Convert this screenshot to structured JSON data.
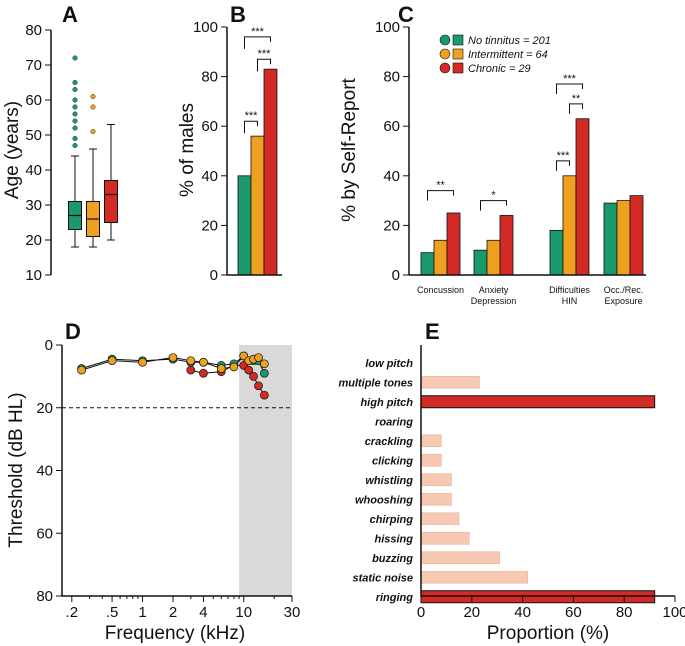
{
  "colors": {
    "no_tinnitus": "#1a9a6c",
    "intermittent": "#f0a020",
    "chronic": "#d42a25",
    "shade": "#d9d9d9",
    "light_bar": "#f7c8b2"
  },
  "chart_data": [
    {
      "panel": "A",
      "type": "box",
      "ylabel": "Age (years)",
      "ylim": [
        10,
        80
      ],
      "yticks": [
        10,
        20,
        30,
        40,
        50,
        60,
        70,
        80
      ],
      "series": [
        {
          "name": "No tinnitus",
          "whisker_low": 18,
          "q1": 23,
          "median": 27,
          "q3": 31,
          "whisker_high": 44,
          "outliers": [
            47,
            49,
            52,
            54,
            56,
            58,
            60,
            63,
            65,
            72
          ]
        },
        {
          "name": "Intermittent",
          "whisker_low": 18,
          "q1": 21,
          "median": 26,
          "q3": 31,
          "whisker_high": 46,
          "outliers": [
            51,
            58,
            61
          ]
        },
        {
          "name": "Chronic",
          "whisker_low": 20,
          "q1": 25,
          "median": 33,
          "q3": 37,
          "whisker_high": 53,
          "outliers": []
        }
      ]
    },
    {
      "panel": "B",
      "type": "bar",
      "ylabel": "% of males",
      "ylim": [
        0,
        100
      ],
      "yticks": [
        0,
        20,
        40,
        60,
        80,
        100
      ],
      "series": [
        {
          "name": "No tinnitus",
          "value": 40
        },
        {
          "name": "Intermittent",
          "value": 56
        },
        {
          "name": "Chronic",
          "value": 83
        }
      ],
      "significance": [
        {
          "from": 0,
          "to": 2,
          "label": "***"
        },
        {
          "from": 1,
          "to": 2,
          "label": "***"
        },
        {
          "from": 0,
          "to": 1,
          "label": "***"
        }
      ]
    },
    {
      "panel": "C",
      "type": "bar",
      "ylabel": "% by Self-Report",
      "ylim": [
        0,
        100
      ],
      "yticks": [
        0,
        20,
        40,
        60,
        80,
        100
      ],
      "categories": [
        [
          "Concussion"
        ],
        [
          "Anxiety",
          "Depression"
        ],
        [
          "Difficulties",
          "HIN"
        ],
        [
          "Occ./Rec.",
          "Exposure"
        ]
      ],
      "series": [
        {
          "name": "No tinnitus = 201",
          "values": [
            9,
            10,
            18,
            29
          ]
        },
        {
          "name": "Intermittent = 64",
          "values": [
            14,
            14,
            40,
            30
          ]
        },
        {
          "name": "Chronic = 29",
          "values": [
            25,
            24,
            63,
            32
          ]
        }
      ],
      "significance": [
        {
          "category": 0,
          "from": 0,
          "to": 2,
          "label": "**"
        },
        {
          "category": 1,
          "from": 0,
          "to": 2,
          "label": "*"
        },
        {
          "category": 2,
          "from": 0,
          "to": 2,
          "label": "***"
        },
        {
          "category": 2,
          "from": 1,
          "to": 2,
          "label": "**"
        },
        {
          "category": 2,
          "from": 0,
          "to": 1,
          "label": "***"
        }
      ]
    },
    {
      "panel": "D",
      "type": "line",
      "xlabel": "Frequency (kHz)",
      "ylabel": "Threshold (dB HL)",
      "xscale": "log",
      "xlim": [
        0.16,
        30
      ],
      "ylim": [
        0,
        80
      ],
      "xticks": [
        0.2,
        0.5,
        1,
        2,
        4,
        10,
        30
      ],
      "xtick_labels": [
        ".2",
        ".5",
        "1",
        "2",
        "4",
        "10",
        "30"
      ],
      "yticks": [
        0,
        20,
        40,
        60,
        80
      ],
      "reference_line": 20,
      "shaded_range": [
        9,
        30
      ],
      "series": [
        {
          "name": "No tinnitus",
          "x": [
            0.25,
            0.5,
            1,
            2,
            3,
            4,
            6,
            8,
            10,
            11.2,
            12.5,
            14,
            16
          ],
          "y": [
            7.5,
            4.5,
            5,
            4.5,
            5.5,
            5.5,
            6.5,
            6,
            3.5,
            5,
            5,
            5,
            9
          ]
        },
        {
          "name": "Intermittent",
          "x": [
            0.25,
            0.5,
            1,
            2,
            3,
            4,
            6,
            8,
            10,
            11.2,
            12.5,
            14,
            16
          ],
          "y": [
            8,
            5,
            5.5,
            4,
            5,
            5.5,
            7.5,
            7,
            3.5,
            5,
            4.5,
            4,
            6
          ]
        },
        {
          "name": "Chronic",
          "x": [
            3,
            4,
            6,
            8,
            10,
            11.2,
            12.5,
            14,
            16
          ],
          "y": [
            8,
            9,
            8.5,
            6.5,
            6.5,
            8,
            10,
            13,
            16
          ]
        }
      ]
    },
    {
      "panel": "E",
      "type": "bar",
      "orientation": "horizontal",
      "xlabel": "Proportion (%)",
      "xlim": [
        0,
        100
      ],
      "xticks": [
        0,
        20,
        40,
        60,
        80,
        100
      ],
      "categories": [
        "low pitch",
        "multiple tones",
        "high pitch",
        "roaring",
        "crackling",
        "clicking",
        "whistling",
        "whooshing",
        "chirping",
        "hissing",
        "buzzing",
        "static noise",
        "ringing"
      ],
      "values": [
        0,
        23,
        92,
        0,
        8,
        8,
        12,
        12,
        15,
        19,
        31,
        42,
        92
      ],
      "highlighted": [
        "high pitch",
        "ringing"
      ]
    }
  ],
  "panel_labels": [
    "A",
    "B",
    "C",
    "D",
    "E"
  ]
}
